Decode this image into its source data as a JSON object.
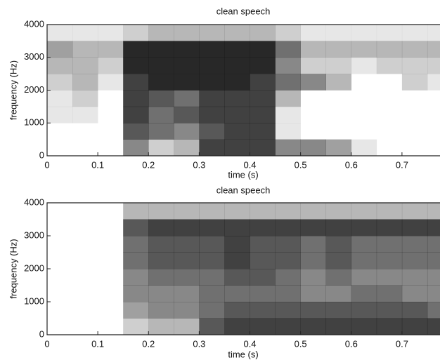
{
  "chart_data": [
    {
      "type": "heatmap",
      "title": "clean speech",
      "x_label": "time (s)",
      "y_label": "frequency (Hz)",
      "x": [
        0,
        0.05,
        0.1,
        0.15,
        0.2,
        0.25,
        0.3,
        0.35,
        0.4,
        0.45,
        0.5,
        0.55,
        0.6,
        0.65,
        0.7,
        0.75
      ],
      "y": [
        0,
        500,
        1000,
        1500,
        2000,
        2500,
        3000,
        3500
      ],
      "z": [
        [
          0,
          0,
          0,
          0.5,
          0.2,
          0.3,
          0.8,
          0.8,
          0.8,
          0.5,
          0.5,
          0.4,
          0.1,
          0,
          0,
          0
        ],
        [
          0,
          0,
          0,
          0.7,
          0.6,
          0.5,
          0.7,
          0.8,
          0.8,
          0.1,
          0,
          0,
          0,
          0,
          0,
          0
        ],
        [
          0.1,
          0.1,
          0,
          0.8,
          0.6,
          0.7,
          0.8,
          0.8,
          0.8,
          0.1,
          0,
          0,
          0,
          0,
          0,
          0
        ],
        [
          0.1,
          0.2,
          0,
          0.8,
          0.7,
          0.6,
          0.8,
          0.8,
          0.8,
          0.3,
          0,
          0,
          0,
          0,
          0,
          0
        ],
        [
          0.2,
          0.3,
          0.1,
          0.8,
          0.9,
          0.9,
          0.9,
          0.9,
          0.8,
          0.6,
          0.5,
          0.3,
          0,
          0,
          0.2,
          0.1
        ],
        [
          0.3,
          0.3,
          0.2,
          0.9,
          0.9,
          0.9,
          0.9,
          0.9,
          0.9,
          0.5,
          0.2,
          0.2,
          0.1,
          0.2,
          0.2,
          0.2
        ],
        [
          0.4,
          0.3,
          0.3,
          0.9,
          0.9,
          0.9,
          0.9,
          0.9,
          0.9,
          0.6,
          0.3,
          0.3,
          0.3,
          0.3,
          0.3,
          0.3
        ],
        [
          0.1,
          0.1,
          0.1,
          0.2,
          0.3,
          0.3,
          0.3,
          0.3,
          0.3,
          0.2,
          0.1,
          0.1,
          0.1,
          0.1,
          0.1,
          0.1
        ]
      ],
      "xlim": [
        0,
        0.775
      ],
      "ylim": [
        0,
        4000
      ],
      "xticks": [
        0,
        0.1,
        0.2,
        0.3,
        0.4,
        0.5,
        0.6,
        0.7
      ],
      "yticks": [
        0,
        1000,
        2000,
        3000,
        4000
      ],
      "color": "#111111"
    },
    {
      "type": "heatmap",
      "title": "clean speech",
      "x_label": "time (s)",
      "y_label": "frequency (Hz)",
      "x": [
        0,
        0.05,
        0.1,
        0.15,
        0.2,
        0.25,
        0.3,
        0.35,
        0.4,
        0.45,
        0.5,
        0.55,
        0.6,
        0.65,
        0.7,
        0.75
      ],
      "y": [
        0,
        500,
        1000,
        1500,
        2000,
        2500,
        3000,
        3500
      ],
      "z": [
        [
          0,
          0,
          0,
          0.2,
          0.3,
          0.3,
          0.7,
          0.8,
          0.8,
          0.8,
          0.8,
          0.8,
          0.8,
          0.8,
          0.8,
          0.8
        ],
        [
          0,
          0,
          0,
          0.4,
          0.5,
          0.5,
          0.6,
          0.7,
          0.7,
          0.7,
          0.7,
          0.7,
          0.7,
          0.7,
          0.7,
          0.6
        ],
        [
          0,
          0,
          0,
          0.5,
          0.5,
          0.5,
          0.6,
          0.6,
          0.6,
          0.6,
          0.5,
          0.5,
          0.6,
          0.6,
          0.5,
          0.5
        ],
        [
          0,
          0,
          0,
          0.5,
          0.6,
          0.6,
          0.6,
          0.7,
          0.7,
          0.6,
          0.5,
          0.6,
          0.5,
          0.5,
          0.5,
          0.5
        ],
        [
          0,
          0,
          0,
          0.6,
          0.7,
          0.7,
          0.7,
          0.8,
          0.7,
          0.7,
          0.6,
          0.7,
          0.6,
          0.6,
          0.6,
          0.6
        ],
        [
          0,
          0,
          0,
          0.6,
          0.7,
          0.7,
          0.7,
          0.8,
          0.7,
          0.7,
          0.6,
          0.7,
          0.6,
          0.6,
          0.6,
          0.6
        ],
        [
          0,
          0,
          0,
          0.7,
          0.8,
          0.8,
          0.8,
          0.8,
          0.8,
          0.8,
          0.8,
          0.8,
          0.8,
          0.8,
          0.8,
          0.8
        ],
        [
          0,
          0,
          0,
          0.3,
          0.3,
          0.3,
          0.3,
          0.3,
          0.3,
          0.3,
          0.3,
          0.3,
          0.3,
          0.3,
          0.3,
          0.3
        ]
      ],
      "xlim": [
        0,
        0.775
      ],
      "ylim": [
        0,
        4000
      ],
      "xticks": [
        0,
        0.1,
        0.2,
        0.3,
        0.4,
        0.5,
        0.6,
        0.7
      ],
      "yticks": [
        0,
        1000,
        2000,
        3000,
        4000
      ],
      "color": "#111111"
    }
  ]
}
